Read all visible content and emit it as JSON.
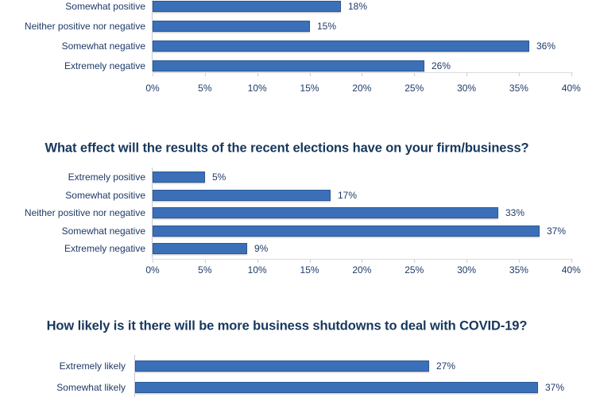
{
  "colors": {
    "background": "#FFFFFF",
    "bar_fill": "#3B70B9",
    "bar_border": "#2A5694",
    "title_text": "#17375D",
    "label_text": "#1E3A68",
    "axis_line": "#C3CBD8"
  },
  "chart_data": [
    {
      "type": "bar",
      "orientation": "horizontal",
      "title": "",
      "clipped": true,
      "categories": [
        "Somewhat positive",
        "Neither positive nor negative",
        "Somewhat negative",
        "Extremely negative"
      ],
      "values": [
        18,
        15,
        36,
        26
      ],
      "value_labels": [
        "18%",
        "15%",
        "36%",
        "26%"
      ],
      "xlim": [
        0,
        40
      ],
      "x_tick_labels": [
        "0%",
        "5%",
        "10%",
        "15%",
        "20%",
        "25%",
        "30%",
        "35%",
        "40%"
      ],
      "grid": false,
      "legend": false
    },
    {
      "type": "bar",
      "orientation": "horizontal",
      "title": "What effect will the results of the recent elections have on your firm/business?",
      "clipped": false,
      "categories": [
        "Extremely positive",
        "Somewhat positive",
        "Neither positive nor negative",
        "Somewhat negative",
        "Extremely negative"
      ],
      "values": [
        5,
        17,
        33,
        37,
        9
      ],
      "value_labels": [
        "5%",
        "17%",
        "33%",
        "37%",
        "9%"
      ],
      "xlim": [
        0,
        40
      ],
      "x_tick_labels": [
        "0%",
        "5%",
        "10%",
        "15%",
        "20%",
        "25%",
        "30%",
        "35%",
        "40%"
      ],
      "grid": false,
      "legend": false
    },
    {
      "type": "bar",
      "orientation": "horizontal",
      "title": "How likely is it there will be more business shutdowns to deal with COVID-19?",
      "clipped": true,
      "categories": [
        "Extremely likely",
        "Somewhat likely"
      ],
      "values": [
        27,
        37
      ],
      "value_labels": [
        "27%",
        "37%"
      ],
      "xlim": [
        0,
        40
      ],
      "x_tick_labels": [],
      "grid": false,
      "legend": false
    }
  ]
}
